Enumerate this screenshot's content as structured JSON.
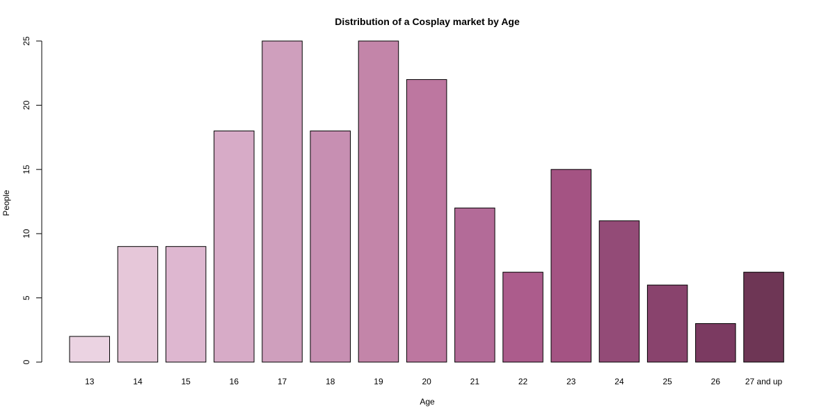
{
  "chart_data": {
    "type": "bar",
    "title": "Distribution of a Cosplay market by Age",
    "xlabel": "Age",
    "ylabel": "People",
    "categories": [
      "13",
      "14",
      "15",
      "16",
      "17",
      "18",
      "19",
      "20",
      "21",
      "22",
      "23",
      "24",
      "25",
      "26",
      "27 and up"
    ],
    "values": [
      2,
      9,
      9,
      18,
      25,
      18,
      25,
      22,
      12,
      7,
      15,
      11,
      6,
      3,
      7
    ],
    "colors": [
      "#ebd3e2",
      "#e6c7d9",
      "#deb7d0",
      "#d7abc7",
      "#cf9fbd",
      "#c78fb2",
      "#c385a9",
      "#bd77a0",
      "#b36b98",
      "#ac5c8c",
      "#a45383",
      "#934b77",
      "#89436d",
      "#7b3a61",
      "#6e3655"
    ],
    "ylim": [
      0,
      25
    ],
    "yticks": [
      "0",
      "5",
      "10",
      "15",
      "20",
      "25"
    ],
    "grid": false,
    "legend": "none"
  }
}
